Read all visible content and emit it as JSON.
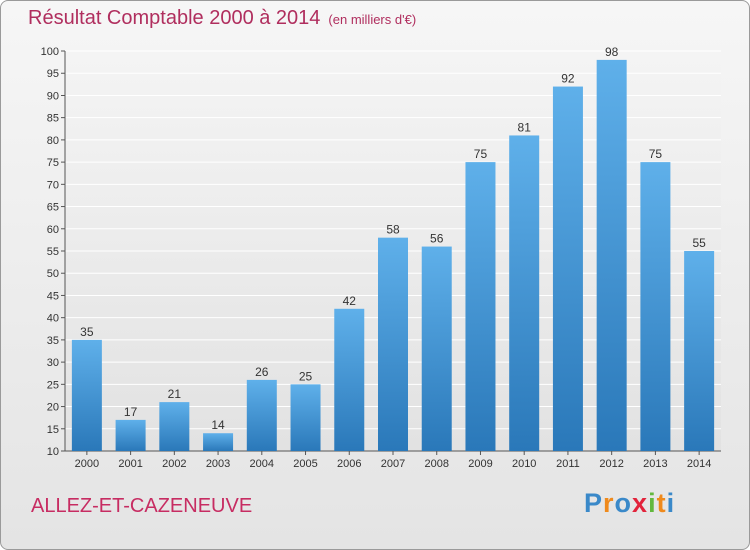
{
  "title": "Résultat Comptable 2000 à 2014",
  "unit": "(en milliers d'€)",
  "town": "ALLEZ-ET-CAZENEUVE",
  "logo": {
    "letters": [
      "P",
      "r",
      "o",
      "x",
      "i",
      "t",
      "i"
    ],
    "colors": [
      "#3a89c9",
      "#ef8a1c",
      "#3a89c9",
      "#e2233b",
      "#62b83e",
      "#ef8a1c",
      "#3a89c9"
    ]
  },
  "colors": {
    "bar_top": "#5fb0ea",
    "bar_bottom": "#2a78b9",
    "title": "#b02e5e"
  },
  "chart_data": {
    "type": "bar",
    "title": "Résultat Comptable 2000 à 2014",
    "ylabel": "en milliers d'€",
    "xlabel": "",
    "categories": [
      "2000",
      "2001",
      "2002",
      "2003",
      "2004",
      "2005",
      "2006",
      "2007",
      "2008",
      "2009",
      "2010",
      "2011",
      "2012",
      "2013",
      "2014"
    ],
    "values": [
      35,
      17,
      21,
      14,
      26,
      25,
      42,
      58,
      56,
      75,
      81,
      92,
      98,
      75,
      55
    ],
    "ylim": [
      10,
      100
    ],
    "yticks": [
      10,
      15,
      20,
      25,
      30,
      35,
      40,
      45,
      50,
      55,
      60,
      65,
      70,
      75,
      80,
      85,
      90,
      95,
      100
    ],
    "grid": true
  }
}
